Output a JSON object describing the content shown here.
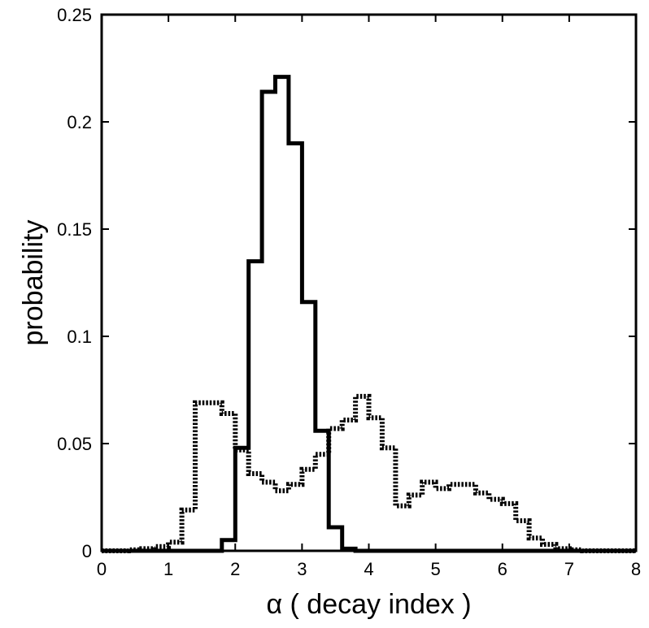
{
  "chart_data": {
    "type": "line",
    "step": true,
    "title": "",
    "xlabel": "α ( decay index )",
    "ylabel": "probability",
    "xlim": [
      0,
      8
    ],
    "ylim": [
      0,
      0.25
    ],
    "x_ticks": [
      "0",
      "1",
      "2",
      "3",
      "4",
      "5",
      "6",
      "7",
      "8"
    ],
    "y_ticks": [
      "0",
      "0.05",
      "0.1",
      "0.15",
      "0.2",
      "0.25"
    ],
    "grid": false,
    "bin_edges": [
      0.0,
      0.2,
      0.4,
      0.6,
      0.8,
      1.0,
      1.2,
      1.4,
      1.6,
      1.8,
      2.0,
      2.2,
      2.4,
      2.6,
      2.8,
      3.0,
      3.2,
      3.4,
      3.6,
      3.8,
      4.0,
      4.2,
      4.4,
      4.6,
      4.8,
      5.0,
      5.2,
      5.4,
      5.6,
      5.8,
      6.0,
      6.2,
      6.4,
      6.6,
      6.8,
      7.0,
      7.2,
      7.4,
      7.6,
      7.8,
      8.0
    ],
    "series": [
      {
        "style": "solid",
        "values": [
          0,
          0,
          0,
          0,
          0,
          0,
          0,
          0,
          0,
          0.005,
          0.048,
          0.135,
          0.214,
          0.221,
          0.19,
          0.116,
          0.056,
          0.011,
          0.001,
          0,
          0,
          0,
          0,
          0,
          0,
          0,
          0,
          0,
          0,
          0,
          0,
          0,
          0,
          0,
          0,
          0,
          0,
          0,
          0,
          0
        ]
      },
      {
        "style": "dotted",
        "values": [
          0,
          0,
          0.0005,
          0.001,
          0.002,
          0.004,
          0.019,
          0.069,
          0.069,
          0.064,
          0.047,
          0.036,
          0.032,
          0.028,
          0.031,
          0.038,
          0.045,
          0.057,
          0.061,
          0.072,
          0.062,
          0.048,
          0.021,
          0.026,
          0.032,
          0.029,
          0.031,
          0.031,
          0.027,
          0.024,
          0.022,
          0.014,
          0.006,
          0.003,
          0.001,
          0.0005,
          0,
          0,
          0,
          0
        ]
      }
    ]
  }
}
